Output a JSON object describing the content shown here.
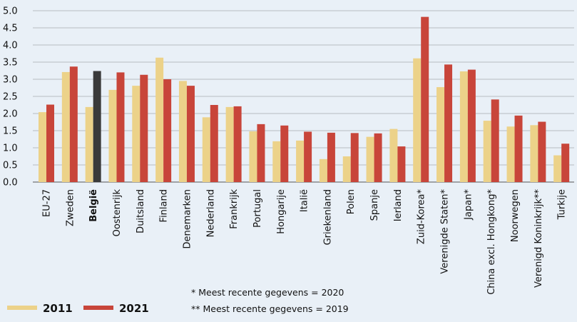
{
  "chart_data": {
    "type": "bar",
    "ylim": [
      0,
      5.0
    ],
    "yticks": [
      "0.0",
      "0.5",
      "1.0",
      "1.5",
      "2.0",
      "2.5",
      "3.0",
      "3.5",
      "4.0",
      "4.5",
      "5.0"
    ],
    "categories": [
      "EU-27",
      "Zweden",
      "België",
      "Oostenrijk",
      "Duitsland",
      "Finland",
      "Denemarken",
      "Nederland",
      "Frankrijk",
      "Portugal",
      "Hongarije",
      "Italië",
      "Griekenland",
      "Polen",
      "Spanje",
      "Ierland",
      "Zuid-Korea*",
      "Verenigde Staten*",
      "Japan*",
      "China excl. Hongkong*",
      "Noorwegen",
      "Verenigd Koninkrijk**",
      "Turkije"
    ],
    "highlight_category": "België",
    "series": [
      {
        "name": "2011",
        "color": "#ecd289",
        "values": [
          2.04,
          3.21,
          2.19,
          2.69,
          2.81,
          3.63,
          2.95,
          1.89,
          2.19,
          1.48,
          1.19,
          1.21,
          0.67,
          0.75,
          1.32,
          1.55,
          3.61,
          2.77,
          3.23,
          1.79,
          1.62,
          1.66,
          0.78
        ]
      },
      {
        "name": "2021",
        "color": "#c8453a",
        "values": [
          2.26,
          3.37,
          3.24,
          3.2,
          3.13,
          3.0,
          2.81,
          2.25,
          2.21,
          1.69,
          1.65,
          1.47,
          1.44,
          1.43,
          1.42,
          1.04,
          4.82,
          3.43,
          3.28,
          2.41,
          1.94,
          1.76,
          1.12
        ]
      }
    ],
    "highlight_color": "#3a3a3a",
    "grid": true,
    "legend": {
      "placement": "bottom-left",
      "items": [
        "2011",
        "2021"
      ]
    },
    "notes": [
      "* Meest recente gegevens = 2020",
      "** Meest recente gegevens = 2019"
    ]
  }
}
